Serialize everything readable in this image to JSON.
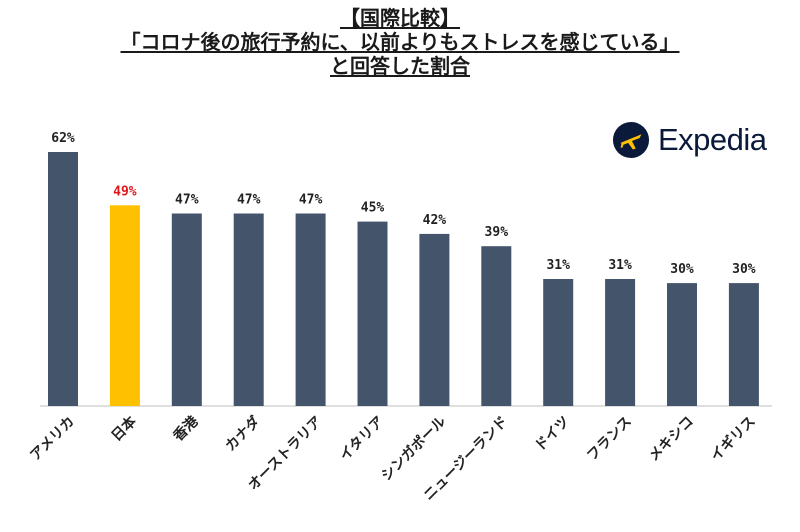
{
  "title_lines": [
    "【国際比較】",
    "「コロナ後の旅行予約に、以前よりもストレスを感じている」",
    "と回答した割合"
  ],
  "brand": {
    "name": "Expedia",
    "icon": "airplane-icon",
    "color": "#0b1a3a"
  },
  "colors": {
    "bar": "#44546a",
    "highlight_bar": "#ffc000",
    "highlight_label": "#e0151b"
  },
  "chart_data": {
    "type": "bar",
    "categories": [
      "アメリカ",
      "日本",
      "香港",
      "カナダ",
      "オーストラリア",
      "イタリア",
      "シンガポール",
      "ニュージーランド",
      "ドイツ",
      "フランス",
      "メキシコ",
      "イギリス"
    ],
    "values": [
      62,
      49,
      47,
      47,
      47,
      45,
      42,
      39,
      31,
      31,
      30,
      30
    ],
    "value_labels": [
      "62%",
      "49%",
      "47%",
      "47%",
      "47%",
      "45%",
      "42%",
      "39%",
      "31%",
      "31%",
      "30%",
      "30%"
    ],
    "highlight_index": 1,
    "ylim": [
      0,
      62
    ],
    "grid": false,
    "legend": false
  }
}
